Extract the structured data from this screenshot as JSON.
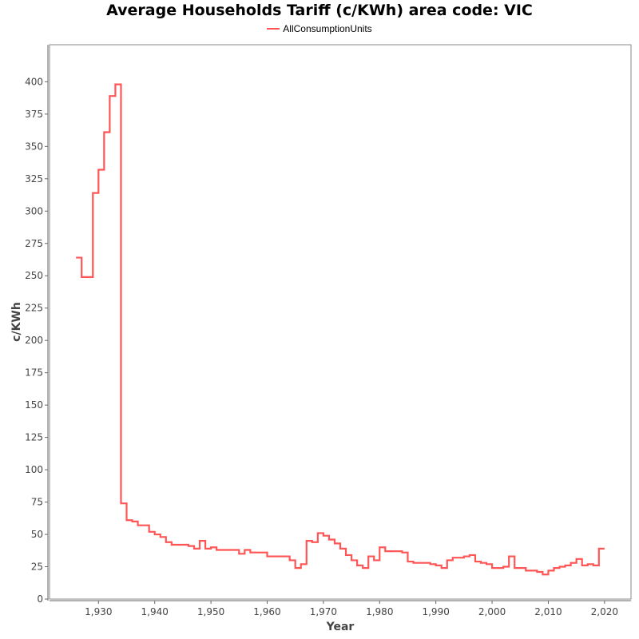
{
  "chart_data": {
    "type": "line",
    "title": "Average Households Tariff (c/KWh) area code: VIC",
    "xlabel": "Year",
    "ylabel": "c/KWh",
    "xlim": [
      1922,
      2024
    ],
    "ylim": [
      0,
      420
    ],
    "x_ticks": [
      1930,
      1940,
      1950,
      1960,
      1970,
      1980,
      1990,
      2000,
      2010,
      2020
    ],
    "x_tick_labels": [
      "1,930",
      "1,940",
      "1,950",
      "1,960",
      "1,970",
      "1,980",
      "1,990",
      "2,000",
      "2,010",
      "2,020"
    ],
    "y_ticks": [
      0,
      25,
      50,
      75,
      100,
      125,
      150,
      175,
      200,
      225,
      250,
      275,
      300,
      325,
      350,
      375,
      400
    ],
    "y_tick_labels": [
      "0",
      "25",
      "50",
      "75",
      "100",
      "125",
      "150",
      "175",
      "200",
      "225",
      "250",
      "275",
      "300",
      "325",
      "350",
      "375",
      "400"
    ],
    "legend_position": "top",
    "grid": false,
    "step": true,
    "series": [
      {
        "name": "AllConsumptionUnits",
        "color": "#ff5555",
        "x": [
          1926,
          1927,
          1928,
          1929,
          1930,
          1931,
          1932,
          1933,
          1934,
          1935,
          1936,
          1937,
          1938,
          1939,
          1940,
          1941,
          1942,
          1943,
          1944,
          1945,
          1946,
          1947,
          1948,
          1949,
          1950,
          1951,
          1952,
          1953,
          1954,
          1955,
          1956,
          1957,
          1958,
          1959,
          1960,
          1961,
          1962,
          1963,
          1964,
          1965,
          1966,
          1967,
          1968,
          1969,
          1970,
          1971,
          1972,
          1973,
          1974,
          1975,
          1976,
          1977,
          1978,
          1979,
          1980,
          1981,
          1982,
          1983,
          1984,
          1985,
          1986,
          1987,
          1988,
          1989,
          1990,
          1991,
          1992,
          1993,
          1994,
          1995,
          1996,
          1997,
          1998,
          1999,
          2000,
          2001,
          2002,
          2003,
          2004,
          2005,
          2006,
          2007,
          2008,
          2009,
          2010,
          2011,
          2012,
          2013,
          2014,
          2015,
          2016,
          2017,
          2018,
          2019
        ],
        "y": [
          264,
          249,
          249,
          314,
          332,
          361,
          389,
          398,
          74,
          61,
          60,
          57,
          57,
          52,
          50,
          48,
          44,
          42,
          42,
          42,
          41,
          39,
          45,
          39,
          40,
          38,
          38,
          38,
          38,
          35,
          38,
          36,
          36,
          36,
          33,
          33,
          33,
          33,
          30,
          24,
          27,
          45,
          44,
          51,
          49,
          46,
          43,
          39,
          34,
          30,
          26,
          24,
          33,
          30,
          40,
          37,
          37,
          37,
          36,
          29,
          28,
          28,
          28,
          27,
          26,
          24,
          30,
          32,
          32,
          33,
          34,
          29,
          28,
          27,
          24,
          24,
          25,
          33,
          24,
          24,
          22,
          22,
          21,
          19,
          22,
          24,
          25,
          26,
          28,
          31,
          26,
          27,
          26,
          39
        ]
      }
    ]
  }
}
